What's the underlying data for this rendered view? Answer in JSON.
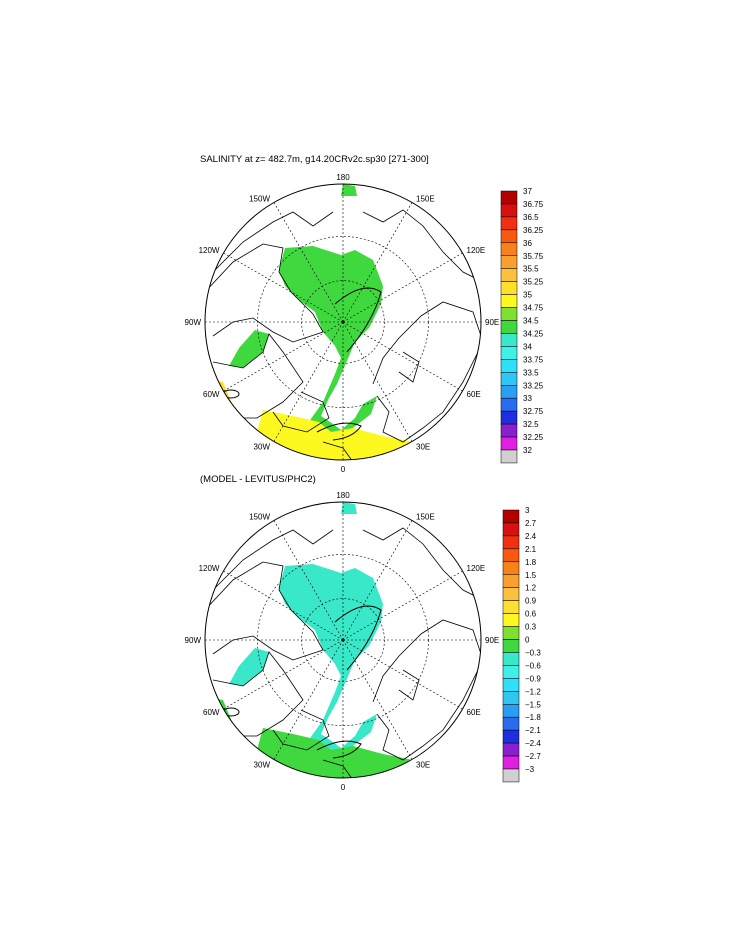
{
  "chart_data": [
    {
      "type": "heatmap",
      "projection": "north-polar-stereographic",
      "title": "SALINITY at z= 482.7m, g14.20CRv2c.sp30 [271-300]",
      "longitude_labels": [
        "180",
        "150W",
        "150E",
        "120W",
        "120E",
        "90W",
        "90E",
        "60W",
        "60E",
        "30W",
        "30E",
        "0"
      ],
      "colorbar": {
        "levels": [
          "37",
          "36.75",
          "36.5",
          "36.25",
          "36",
          "35.75",
          "35.5",
          "35.25",
          "35",
          "34.75",
          "34.5",
          "34.25",
          "34",
          "33.75",
          "33.5",
          "33.25",
          "33",
          "32.75",
          "32.5",
          "32.25",
          "32"
        ],
        "colors": [
          "#b30000",
          "#d81010",
          "#f03010",
          "#f55a10",
          "#f6821a",
          "#f8a030",
          "#fbc13c",
          "#fce030",
          "#fcf820",
          "#80e030",
          "#3fd83f",
          "#38e8c8",
          "#3ff0e8",
          "#30e0f8",
          "#2fc6f2",
          "#2a9ef0",
          "#2a6cf0",
          "#1d2fe0",
          "#8a1fd0",
          "#e020e0",
          "#d0d0d0",
          "#707070"
        ],
        "below_colors_note": "",
        "dominant_fields": {
          "central_arctic": "34.75-35",
          "atlantic_inflow": "35-35.25",
          "eastern_basin": "34.75-35"
        }
      }
    },
    {
      "type": "heatmap",
      "projection": "north-polar-stereographic",
      "title": "(MODEL - LEVITUS/PHC2)",
      "longitude_labels": [
        "180",
        "150W",
        "150E",
        "120W",
        "120E",
        "90W",
        "90E",
        "60W",
        "60E",
        "30W",
        "30E",
        "0"
      ],
      "colorbar": {
        "levels": [
          "3",
          "2.7",
          "2.4",
          "2.1",
          "1.8",
          "1.5",
          "1.2",
          "0.9",
          "0.6",
          "0.3",
          "0",
          "−0.3",
          "−0.6",
          "−0.9",
          "−1.2",
          "−1.5",
          "−1.8",
          "−2.1",
          "−2.4",
          "−2.7",
          "−3"
        ],
        "colors": [
          "#b30000",
          "#d81010",
          "#f03010",
          "#f55a10",
          "#f6821a",
          "#f8a030",
          "#fbc13c",
          "#fce030",
          "#fcf820",
          "#80e030",
          "#3fd83f",
          "#38e8c8",
          "#3ff0e8",
          "#30e0f8",
          "#2fc6f2",
          "#2a9ef0",
          "#2a6cf0",
          "#1d2fe0",
          "#8a1fd0",
          "#e020e0",
          "#d0d0d0",
          "#707070"
        ],
        "dominant_fields": {
          "central_arctic": "-0.3-0",
          "atlantic_inflow": "0-0.3"
        }
      }
    }
  ]
}
